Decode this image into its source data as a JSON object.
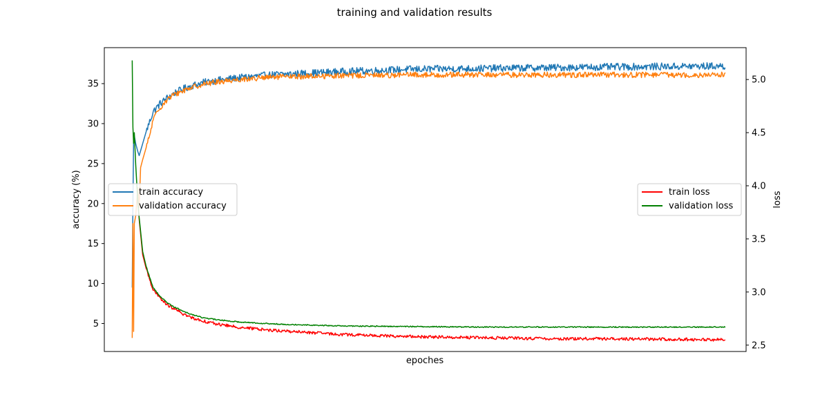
{
  "chart_data": {
    "type": "line",
    "title": "training and validation results",
    "xlabel": "epoches",
    "ylabel_left": "accuracy (%)",
    "ylabel_right": "loss",
    "ylim_left": [
      1.5,
      39.5
    ],
    "ylim_right": [
      2.44,
      5.3
    ],
    "yticks_left": [
      5,
      10,
      15,
      20,
      25,
      30,
      35
    ],
    "yticks_right": [
      2.5,
      3.0,
      3.5,
      4.0,
      4.5,
      5.0
    ],
    "ytick_labels_right": [
      "2.5",
      "3.0",
      "3.5",
      "4.0",
      "4.5",
      "5.0"
    ],
    "xlim": [
      -40,
      880
    ],
    "n_epochs": 850,
    "legend_left_position": "center-left",
    "legend_right_position": "center-right",
    "series": [
      {
        "name": "train accuracy",
        "axis": "left",
        "color": "#1f77b4",
        "x": [
          0,
          1,
          2,
          3,
          5,
          8,
          10,
          15,
          20,
          30,
          40,
          50,
          60,
          80,
          100,
          120,
          150,
          200,
          250,
          300,
          400,
          500,
          600,
          700,
          850
        ],
        "values": [
          9.5,
          20,
          28,
          28.5,
          27.5,
          26.5,
          26,
          27.5,
          29,
          31.5,
          32.5,
          33.2,
          33.8,
          34.6,
          35.1,
          35.4,
          35.7,
          36.1,
          36.3,
          36.5,
          36.8,
          36.9,
          37.0,
          37.1,
          37.2
        ],
        "noise": 0.45
      },
      {
        "name": "validation accuracy",
        "axis": "left",
        "color": "#ff7f0e",
        "x": [
          0,
          1,
          2,
          3,
          5,
          8,
          10,
          12,
          15,
          20,
          25,
          30,
          40,
          50,
          60,
          80,
          100,
          120,
          150,
          200,
          250,
          300,
          400,
          500,
          600,
          700,
          850
        ],
        "values": [
          3.2,
          17.5,
          4.0,
          17.5,
          18.5,
          22,
          19.5,
          24.5,
          25.5,
          27,
          28.5,
          30.5,
          32,
          33,
          33.6,
          34.4,
          34.9,
          35.2,
          35.5,
          35.8,
          35.9,
          36.0,
          36.1,
          36.1,
          36.1,
          36.1,
          36.1
        ],
        "noise": 0.35
      },
      {
        "name": "train loss",
        "axis": "right",
        "color": "#ff0000",
        "x": [
          8,
          10,
          15,
          20,
          30,
          40,
          50,
          60,
          80,
          100,
          120,
          150,
          200,
          250,
          300,
          400,
          500,
          600,
          700,
          850
        ],
        "values": [
          3.85,
          3.68,
          3.35,
          3.22,
          3.02,
          2.94,
          2.88,
          2.84,
          2.77,
          2.73,
          2.7,
          2.67,
          2.64,
          2.62,
          2.6,
          2.58,
          2.57,
          2.56,
          2.56,
          2.55
        ],
        "noise": 0.014
      },
      {
        "name": "validation loss",
        "axis": "right",
        "color": "#008000",
        "x": [
          0,
          1,
          2,
          3,
          5,
          8,
          10,
          15,
          20,
          30,
          40,
          50,
          60,
          80,
          100,
          120,
          150,
          200,
          250,
          300,
          400,
          500,
          600,
          700,
          850
        ],
        "values": [
          5.18,
          4.55,
          4.4,
          4.5,
          4.2,
          3.85,
          3.7,
          3.38,
          3.24,
          3.04,
          2.96,
          2.9,
          2.86,
          2.8,
          2.76,
          2.74,
          2.72,
          2.7,
          2.69,
          2.68,
          2.675,
          2.67,
          2.67,
          2.67,
          2.67
        ],
        "noise": 0.005
      }
    ]
  }
}
